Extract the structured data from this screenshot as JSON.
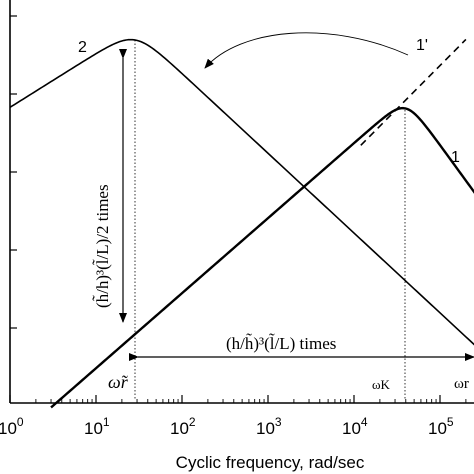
{
  "chart_data": {
    "type": "line",
    "title": "",
    "xlabel": "Cyclic frequency, rad/sec",
    "ylabel": "",
    "x_scale": "log",
    "xlim": [
      1,
      1000000
    ],
    "y_scale": "log",
    "ylim": [
      1e-05,
      1
    ],
    "grid": false,
    "x_ticks": [
      {
        "base": "10",
        "exp": "0"
      },
      {
        "base": "10",
        "exp": "1"
      },
      {
        "base": "10",
        "exp": "2"
      },
      {
        "base": "10",
        "exp": "3"
      },
      {
        "base": "10",
        "exp": "4"
      },
      {
        "base": "10",
        "exp": "5"
      }
    ],
    "series": [
      {
        "name": "2",
        "style": "solid",
        "color": "#000000",
        "x": [
          1,
          28,
          1000000
        ],
        "y": [
          0.05,
          0.5,
          1.1e-05
        ]
      },
      {
        "name": "1",
        "style": "solid-bold",
        "color": "#000000",
        "x": [
          3,
          40000,
          1000000
        ],
        "y": [
          7.1e-06,
          0.066,
          0.0005
        ]
      },
      {
        "name": "1'",
        "style": "dashed",
        "color": "#000000",
        "x": [
          12000,
          200000
        ],
        "y": [
          0.022,
          0.5
        ]
      }
    ],
    "annotations": {
      "vertical_text": "(h̃/h)³(l̃/L)/2  times",
      "horizontal_text": "(h/h̃)³(l̃/L) times",
      "omega_r_left": "ω̃r",
      "omega_k": "ωK",
      "omega_r_right": "ωr"
    }
  }
}
